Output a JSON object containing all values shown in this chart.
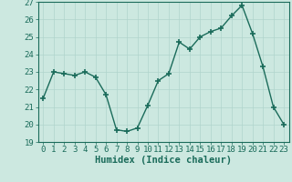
{
  "x": [
    0,
    1,
    2,
    3,
    4,
    5,
    6,
    7,
    8,
    9,
    10,
    11,
    12,
    13,
    14,
    15,
    16,
    17,
    18,
    19,
    20,
    21,
    22,
    23
  ],
  "y": [
    21.5,
    23.0,
    22.9,
    22.8,
    23.0,
    22.7,
    21.7,
    19.7,
    19.6,
    19.8,
    21.1,
    22.5,
    22.9,
    24.7,
    24.3,
    25.0,
    25.3,
    25.5,
    26.2,
    26.8,
    25.2,
    23.3,
    21.0,
    20.0
  ],
  "line_color": "#1a6b5a",
  "marker": "+",
  "markersize": 4,
  "markeredgewidth": 1.2,
  "linewidth": 1.0,
  "xlabel": "Humidex (Indice chaleur)",
  "ylim": [
    19,
    27
  ],
  "xlim": [
    -0.5,
    23.5
  ],
  "yticks": [
    19,
    20,
    21,
    22,
    23,
    24,
    25,
    26,
    27
  ],
  "xticks": [
    0,
    1,
    2,
    3,
    4,
    5,
    6,
    7,
    8,
    9,
    10,
    11,
    12,
    13,
    14,
    15,
    16,
    17,
    18,
    19,
    20,
    21,
    22,
    23
  ],
  "bg_color": "#cce8e0",
  "grid_color": "#b0d4cc",
  "tick_label_fontsize": 6.5,
  "xlabel_fontsize": 7.5,
  "xlabel_fontweight": "bold"
}
